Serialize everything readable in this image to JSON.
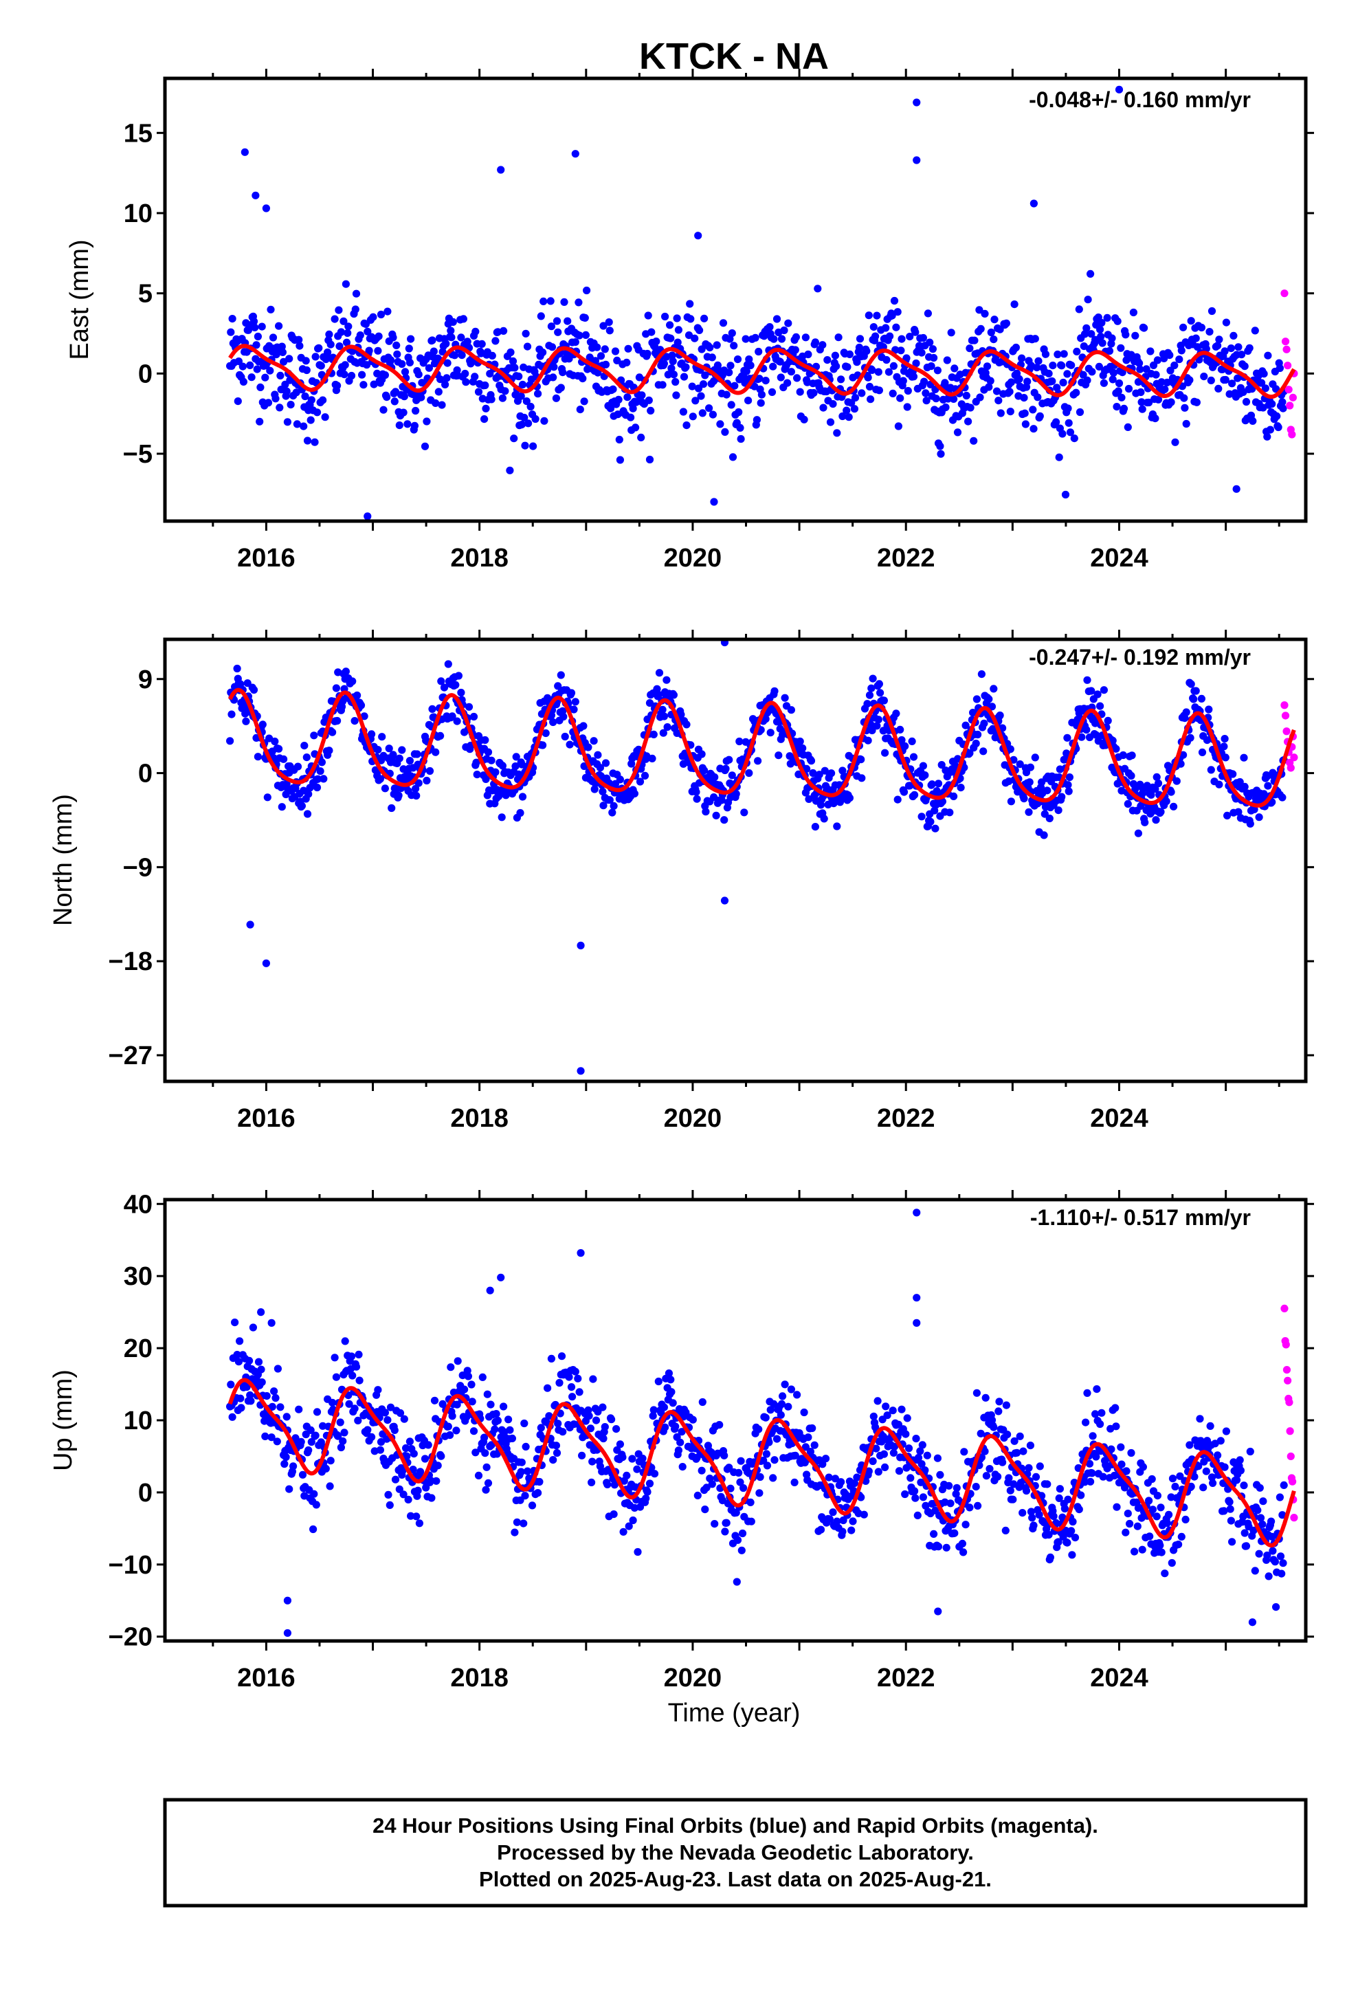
{
  "chart_data": {
    "title": "KTCK - NA",
    "type": "scatter",
    "x_ticks": [
      "2016",
      "2018",
      "2020",
      "2022",
      "2024"
    ],
    "xlim": [
      2015.05,
      2025.75
    ],
    "xlabel": "Time (year)",
    "panels": [
      {
        "ylabel": "East (mm)",
        "ylim": [
          -9.2,
          18.4
        ],
        "y_ticks": [
          15,
          10,
          5,
          0,
          -5
        ],
        "y_tick_labels": [
          "15",
          "10",
          "5",
          "0",
          "−5"
        ],
        "rate": "-0.048+/- 0.160 mm/yr",
        "model": {
          "offset": 0.2,
          "trend": -0.048,
          "amp_annual": 1.2,
          "phase_annual": 0.62,
          "amp_semi": 0.35
        },
        "scatter_sd": 1.6,
        "outliers": [
          [
            2015.8,
            13.8
          ],
          [
            2015.9,
            11.1
          ],
          [
            2016.0,
            10.3
          ],
          [
            2018.2,
            12.7
          ],
          [
            2018.9,
            13.7
          ],
          [
            2020.05,
            8.6
          ],
          [
            2022.1,
            16.9
          ],
          [
            2022.1,
            13.3
          ],
          [
            2023.2,
            10.6
          ],
          [
            2024.0,
            17.7
          ],
          [
            2016.95,
            -8.9
          ],
          [
            2020.2,
            -8.0
          ],
          [
            2025.1,
            -7.2
          ]
        ],
        "rapid": {
          "x_start": 2025.55,
          "x_end": 2025.64,
          "values": [
            5.0,
            2.0,
            1.5,
            0.5,
            -1.0,
            -2.0,
            -3.5,
            -3.8,
            -1.5,
            0.0
          ]
        }
      },
      {
        "ylabel": "North (mm)",
        "ylim": [
          -29.5,
          12.8
        ],
        "y_ticks": [
          9,
          0,
          -9,
          -18,
          -27
        ],
        "y_tick_labels": [
          "9",
          "0",
          "−9",
          "−18",
          "−27"
        ],
        "rate": "-0.247+/- 0.192 mm/yr",
        "model": {
          "offset": 1.7,
          "trend": -0.247,
          "amp_annual": 4.3,
          "phase_annual": 0.5,
          "amp_semi": 0.8
        },
        "scatter_sd": 1.4,
        "outliers": [
          [
            2015.85,
            -14.5
          ],
          [
            2016.0,
            -18.2
          ],
          [
            2018.95,
            -16.5
          ],
          [
            2018.95,
            -28.5
          ],
          [
            2020.3,
            12.5
          ],
          [
            2020.3,
            -12.2
          ]
        ],
        "rapid": {
          "x_start": 2025.55,
          "x_end": 2025.64,
          "values": [
            6.5,
            5.5,
            4.0,
            3.0,
            2.0,
            1.0,
            0.5,
            2.5,
            3.5,
            1.5
          ]
        }
      },
      {
        "ylabel": "Up (mm)",
        "ylim": [
          -20.6,
          40.6
        ],
        "y_ticks": [
          40,
          30,
          20,
          10,
          0,
          -10,
          -20
        ],
        "y_tick_labels": [
          "40",
          "30",
          "20",
          "10",
          "0",
          "−10",
          "−20"
        ],
        "rate": "-1.110+/- 0.517 mm/yr",
        "model": {
          "offset": 4.5,
          "trend": -1.11,
          "amp_annual": 5.5,
          "phase_annual": 0.62,
          "amp_semi": 1.5
        },
        "scatter_sd": 3.2,
        "outliers": [
          [
            2015.95,
            25.0
          ],
          [
            2016.05,
            23.5
          ],
          [
            2018.1,
            28.0
          ],
          [
            2018.2,
            29.8
          ],
          [
            2018.95,
            33.2
          ],
          [
            2022.1,
            38.8
          ],
          [
            2022.1,
            27.0
          ],
          [
            2022.1,
            23.5
          ],
          [
            2016.2,
            -19.5
          ],
          [
            2016.2,
            -15.0
          ],
          [
            2022.3,
            -16.5
          ],
          [
            2025.25,
            -18.0
          ]
        ],
        "rapid": {
          "x_start": 2025.55,
          "x_end": 2025.64,
          "values": [
            25.5,
            21.0,
            20.5,
            17.0,
            15.5,
            13.0,
            12.5,
            8.5,
            5.0,
            2.0,
            1.5,
            -1.0,
            -3.5
          ]
        }
      }
    ],
    "colors": {
      "final_orbits": "#0000ff",
      "rapid_orbits": "#ff00ff",
      "model": "#ff0000"
    }
  },
  "footer": {
    "line1": "24 Hour Positions Using Final Orbits (blue) and Rapid Orbits (magenta).",
    "line2": "Processed by the Nevada Geodetic Laboratory.",
    "line3": "Plotted on 2025-Aug-23. Last data on 2025-Aug-21."
  }
}
